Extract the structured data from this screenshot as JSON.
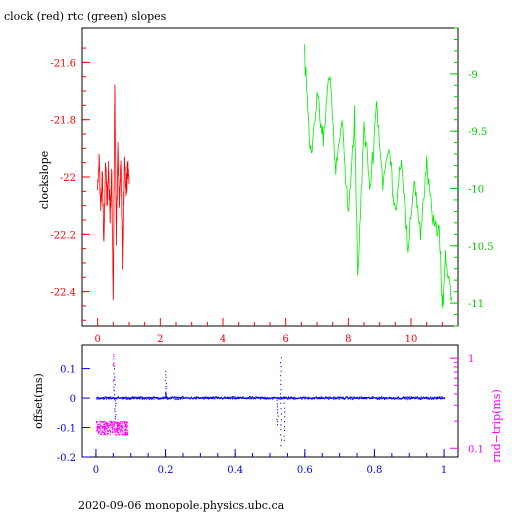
{
  "top_title": "clock (red) rtc (green) slopes",
  "footer_text": "2020-09-06  monopole.physics.ubc.ca",
  "colors": {
    "red": "#ff0000",
    "green": "#00ee00",
    "blue": "#0000ff",
    "magenta": "#ff00ff",
    "axis": "#000000"
  },
  "chart_data": [
    {
      "type": "line",
      "ylabel": "clockslope",
      "xlim": [
        -0.5,
        11.5
      ],
      "x_ticks": [
        0,
        2,
        4,
        6,
        8,
        10
      ],
      "left_ylim": [
        -22.52,
        -21.48
      ],
      "left_y_ticks": [
        -21.6,
        -21.8,
        -22,
        -22.2,
        -22.4
      ],
      "right_ylim": [
        -11.2,
        -8.6
      ],
      "right_y_ticks": [
        -9,
        -9.5,
        -10,
        -10.5,
        -11
      ],
      "grid": false,
      "series": [
        {
          "color": "red",
          "axis": "left",
          "x_range": [
            0,
            1.0
          ],
          "approx_mean": -22.0,
          "approx_range": [
            -22.45,
            -21.67
          ],
          "points": [
            [
              0,
              -22.05
            ],
            [
              0.05,
              -21.93
            ],
            [
              0.1,
              -22.12
            ],
            [
              0.15,
              -22.0
            ],
            [
              0.2,
              -22.23
            ],
            [
              0.25,
              -21.95
            ],
            [
              0.3,
              -22.08
            ],
            [
              0.35,
              -21.98
            ],
            [
              0.4,
              -22.15
            ],
            [
              0.45,
              -21.97
            ],
            [
              0.5,
              -22.45
            ],
            [
              0.55,
              -21.67
            ],
            [
              0.6,
              -22.2
            ],
            [
              0.65,
              -21.9
            ],
            [
              0.7,
              -22.1
            ],
            [
              0.75,
              -21.95
            ],
            [
              0.8,
              -22.3
            ],
            [
              0.85,
              -21.92
            ],
            [
              0.9,
              -22.05
            ],
            [
              0.95,
              -21.96
            ],
            [
              1.0,
              -22.0
            ]
          ]
        },
        {
          "color": "green",
          "axis": "right",
          "x_range": [
            6.6,
            11.3
          ],
          "approx_range": [
            -11.1,
            -8.85
          ],
          "points": [
            [
              6.6,
              -8.85
            ],
            [
              6.8,
              -9.7
            ],
            [
              7.0,
              -9.2
            ],
            [
              7.2,
              -9.6
            ],
            [
              7.4,
              -8.95
            ],
            [
              7.6,
              -9.85
            ],
            [
              7.8,
              -9.4
            ],
            [
              8.0,
              -10.25
            ],
            [
              8.2,
              -9.35
            ],
            [
              8.3,
              -10.8
            ],
            [
              8.5,
              -9.45
            ],
            [
              8.7,
              -10.0
            ],
            [
              8.9,
              -9.25
            ],
            [
              9.1,
              -9.95
            ],
            [
              9.3,
              -9.65
            ],
            [
              9.5,
              -10.2
            ],
            [
              9.7,
              -9.7
            ],
            [
              9.9,
              -10.6
            ],
            [
              10.1,
              -9.9
            ],
            [
              10.3,
              -10.4
            ],
            [
              10.5,
              -9.8
            ],
            [
              10.7,
              -10.3
            ],
            [
              10.9,
              -10.35
            ],
            [
              11.0,
              -11.05
            ],
            [
              11.1,
              -10.6
            ],
            [
              11.3,
              -10.95
            ]
          ]
        }
      ]
    },
    {
      "type": "scatter",
      "ylabel": "offset(ms)",
      "right_ylabel": "rnd−trip(ms)",
      "xlim": [
        -0.04,
        1.04
      ],
      "x_ticks": [
        0,
        0.2,
        0.4,
        0.6,
        0.8,
        1
      ],
      "ylim": [
        -0.2,
        0.18
      ],
      "y_ticks": [
        0.1,
        0,
        -0.1,
        -0.2
      ],
      "right_y_scale": "log",
      "right_y_ticks": [
        1,
        0.1
      ],
      "grid": false,
      "series": [
        {
          "color": "blue",
          "axis": "left",
          "x_range": [
            0,
            1.0
          ],
          "baseline": 0.0,
          "spikes": [
            [
              0.052,
              0.12
            ],
            [
              0.055,
              -0.09
            ],
            [
              0.2,
              0.1
            ],
            [
              0.2,
              0.02
            ],
            [
              0.53,
              0.15
            ],
            [
              0.53,
              -0.18
            ],
            [
              0.54,
              -0.16
            ],
            [
              0.52,
              -0.1
            ]
          ]
        },
        {
          "color": "magenta",
          "axis": "right",
          "x_range": [
            0,
            0.09
          ],
          "approx_range": [
            0.12,
            1.1
          ]
        }
      ]
    }
  ]
}
